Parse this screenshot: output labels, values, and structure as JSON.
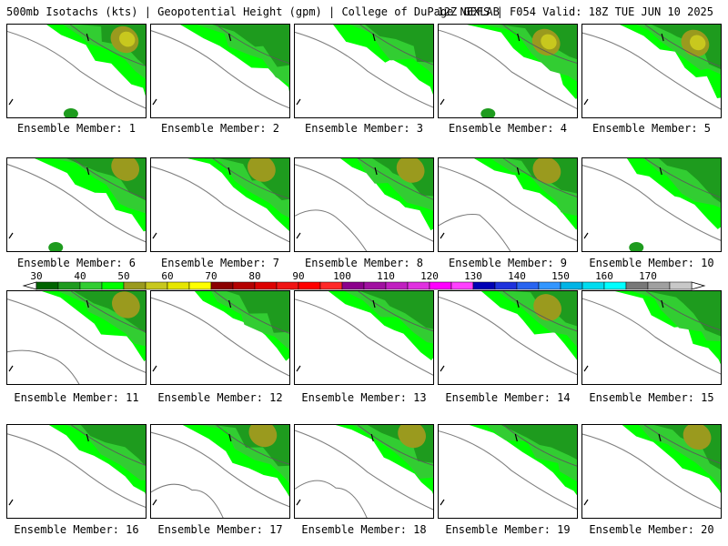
{
  "header": {
    "left": "500mb Isotachs (kts) | Geopotential Height (gpm) | College of DuPage NEXLAB",
    "right": "12Z GEFS | F054 Valid: 18Z TUE JUN 10 2025"
  },
  "members": [
    {
      "label": "Ensemble Member: 1"
    },
    {
      "label": "Ensemble Member: 2"
    },
    {
      "label": "Ensemble Member: 3"
    },
    {
      "label": "Ensemble Member: 4"
    },
    {
      "label": "Ensemble Member: 5"
    },
    {
      "label": "Ensemble Member: 6"
    },
    {
      "label": "Ensemble Member: 7"
    },
    {
      "label": "Ensemble Member: 8"
    },
    {
      "label": "Ensemble Member: 9"
    },
    {
      "label": "Ensemble Member: 10"
    },
    {
      "label": "Ensemble Member: 11"
    },
    {
      "label": "Ensemble Member: 12"
    },
    {
      "label": "Ensemble Member: 13"
    },
    {
      "label": "Ensemble Member: 14"
    },
    {
      "label": "Ensemble Member: 15"
    },
    {
      "label": "Ensemble Member: 16"
    },
    {
      "label": "Ensemble Member: 17"
    },
    {
      "label": "Ensemble Member: 18"
    },
    {
      "label": "Ensemble Member: 19"
    },
    {
      "label": "Ensemble Member: 20"
    }
  ],
  "colorbar": {
    "labels": [
      "30",
      "40",
      "50",
      "60",
      "70",
      "80",
      "90",
      "100",
      "110",
      "120",
      "130",
      "140",
      "150",
      "160",
      "170"
    ],
    "colors": [
      "#006400",
      "#1e9b1e",
      "#32cd32",
      "#00ff00",
      "#9a9a1e",
      "#c8c81e",
      "#e6e600",
      "#ffff00",
      "#8b0000",
      "#b40000",
      "#dc0000",
      "#f01414",
      "#ff0000",
      "#ff2828",
      "#8b008b",
      "#a010a0",
      "#c020c0",
      "#e030e0",
      "#ff00ff",
      "#ff40ff",
      "#0000b4",
      "#1e32dc",
      "#2864f0",
      "#3296ff",
      "#00b4e6",
      "#00dcf0",
      "#00ffff",
      "#787878",
      "#a0a0a0",
      "#c8c8c8"
    ]
  },
  "contour_colors": {
    "dark_green": "#006400",
    "mid_green": "#1e9b1e",
    "light_green": "#32cd32",
    "bright_green": "#00ff00",
    "olive": "#9a9a1e",
    "yellow_olive": "#c8c81e",
    "coast": "#808080"
  }
}
